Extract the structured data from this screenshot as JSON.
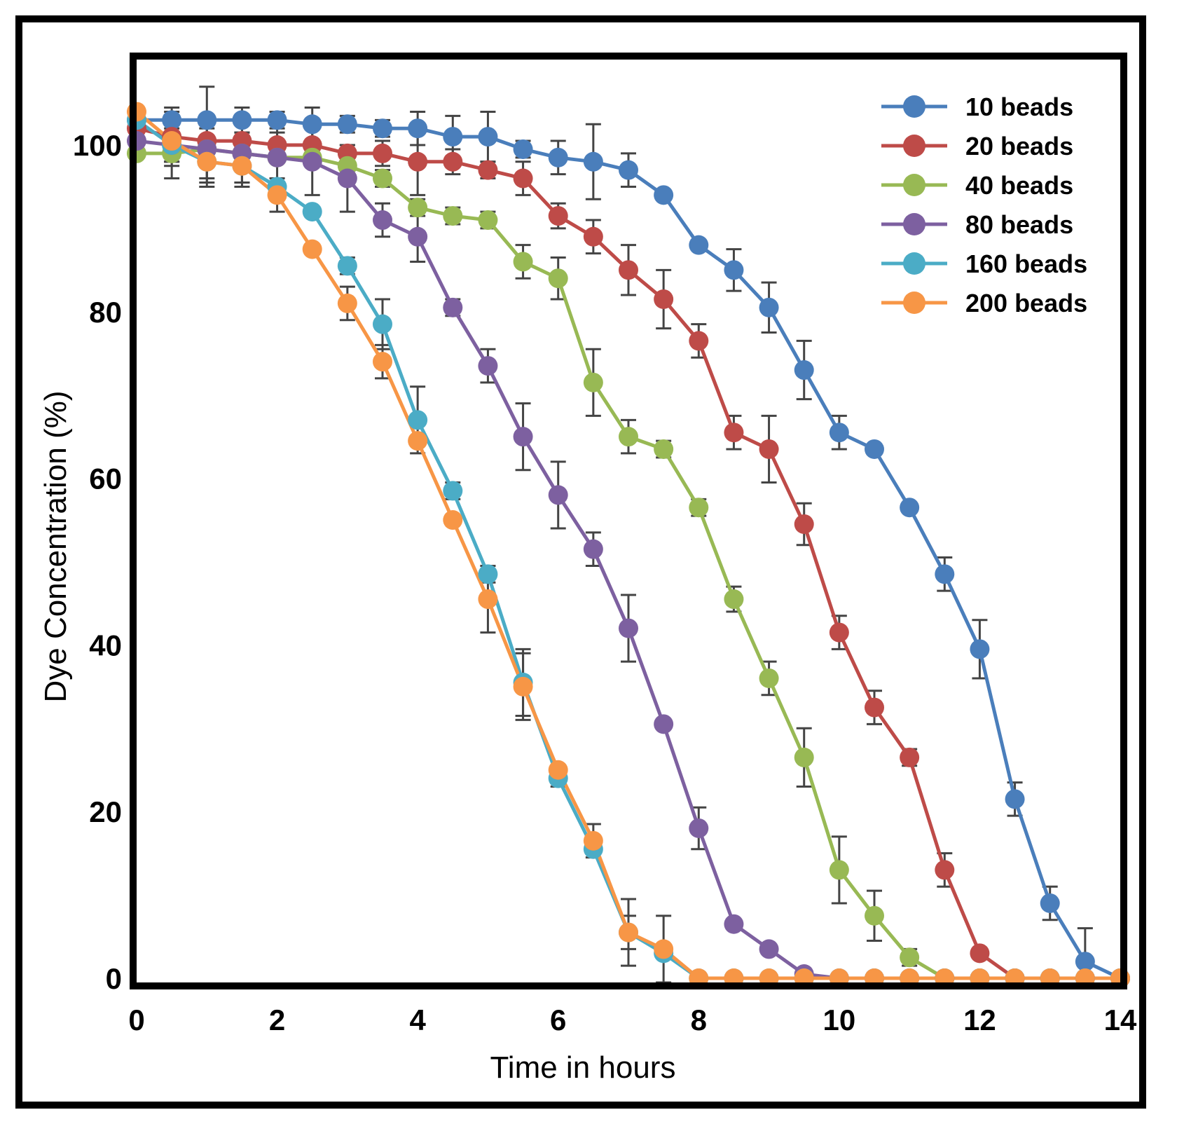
{
  "chart_data": {
    "type": "line",
    "title": "",
    "xlabel": "Time in hours",
    "ylabel": "Dye Concentration (%)",
    "xlim": [
      0,
      14
    ],
    "ylim": [
      0,
      110
    ],
    "x_ticks": [
      "0",
      "2",
      "4",
      "6",
      "8",
      "10",
      "12",
      "14"
    ],
    "y_ticks": [
      "0",
      "20",
      "40",
      "60",
      "80",
      "100"
    ],
    "y_tick_values": [
      0,
      20,
      40,
      60,
      80,
      100
    ],
    "legend_position": "top-right",
    "grid": false,
    "error_bar_color": "#444444",
    "series": [
      {
        "name": "10 beads",
        "color": "#4a7ebb",
        "points": [
          [
            0,
            103
          ],
          [
            0.5,
            103
          ],
          [
            1,
            103
          ],
          [
            1.5,
            103
          ],
          [
            2,
            103
          ],
          [
            2.5,
            102.5
          ],
          [
            3,
            102.5
          ],
          [
            3.5,
            102
          ],
          [
            4,
            102
          ],
          [
            4.5,
            101
          ],
          [
            5,
            101
          ],
          [
            5.5,
            99.5
          ],
          [
            6,
            98.5
          ],
          [
            6.5,
            98
          ],
          [
            7,
            97
          ],
          [
            7.5,
            94
          ],
          [
            8,
            88
          ],
          [
            8.5,
            85
          ],
          [
            9,
            80.5
          ],
          [
            9.5,
            73
          ],
          [
            10,
            65.5
          ],
          [
            10.5,
            63.5
          ],
          [
            11,
            56.5
          ],
          [
            11.5,
            48.5
          ],
          [
            12,
            39.5
          ],
          [
            12.5,
            21.5
          ],
          [
            13,
            9
          ],
          [
            13.5,
            2
          ],
          [
            14,
            0
          ]
        ],
        "errors": [
          0,
          1.5,
          4,
          1.5,
          1,
          2,
          1,
          1,
          2,
          2.5,
          3,
          1,
          2,
          4.5,
          2,
          0,
          0,
          2.5,
          3,
          3.5,
          2,
          0,
          0,
          2,
          3.5,
          2,
          2,
          4,
          0
        ]
      },
      {
        "name": "20 beads",
        "color": "#be4b48",
        "points": [
          [
            0,
            102
          ],
          [
            0.5,
            101
          ],
          [
            1,
            100.5
          ],
          [
            1.5,
            100.5
          ],
          [
            2,
            100
          ],
          [
            2.5,
            100
          ],
          [
            3,
            99
          ],
          [
            3.5,
            99
          ],
          [
            4,
            98
          ],
          [
            4.5,
            98
          ],
          [
            5,
            97
          ],
          [
            5.5,
            96
          ],
          [
            6,
            91.5
          ],
          [
            6.5,
            89
          ],
          [
            7,
            85
          ],
          [
            7.5,
            81.5
          ],
          [
            8,
            76.5
          ],
          [
            8.5,
            65.5
          ],
          [
            9,
            63.5
          ],
          [
            9.5,
            54.5
          ],
          [
            10,
            41.5
          ],
          [
            10.5,
            32.5
          ],
          [
            11,
            26.5
          ],
          [
            11.5,
            13
          ],
          [
            12,
            3
          ],
          [
            12.5,
            0
          ],
          [
            13,
            0
          ],
          [
            13.5,
            0
          ],
          [
            14,
            0
          ]
        ],
        "errors": [
          0,
          2,
          1.5,
          1,
          1.5,
          2,
          1,
          1.5,
          4,
          1.5,
          1,
          2,
          1.5,
          2,
          3,
          3.5,
          2,
          2,
          4,
          2.5,
          2,
          2,
          1,
          2,
          0,
          0,
          0,
          0,
          0
        ]
      },
      {
        "name": "40 beads",
        "color": "#98b954",
        "points": [
          [
            0,
            99
          ],
          [
            0.5,
            99
          ],
          [
            1,
            99.5
          ],
          [
            1.5,
            99
          ],
          [
            2,
            98.5
          ],
          [
            2.5,
            98.5
          ],
          [
            3,
            97.5
          ],
          [
            3.5,
            96
          ],
          [
            4,
            92.5
          ],
          [
            4.5,
            91.5
          ],
          [
            5,
            91
          ],
          [
            5.5,
            86
          ],
          [
            6,
            84
          ],
          [
            6.5,
            71.5
          ],
          [
            7,
            65
          ],
          [
            7.5,
            63.5
          ],
          [
            8,
            56.5
          ],
          [
            8.5,
            45.5
          ],
          [
            9,
            36
          ],
          [
            9.5,
            26.5
          ],
          [
            10,
            13
          ],
          [
            10.5,
            7.5
          ],
          [
            11,
            2.5
          ],
          [
            11.5,
            0
          ],
          [
            12,
            0
          ],
          [
            12.5,
            0
          ],
          [
            13,
            0
          ],
          [
            13.5,
            0
          ],
          [
            14,
            0
          ]
        ],
        "errors": [
          0,
          1,
          0,
          0,
          0,
          0,
          0,
          1,
          1,
          1,
          1,
          2,
          2.5,
          4,
          2,
          1,
          1,
          1.5,
          2,
          3.5,
          4,
          3,
          1,
          0,
          0,
          0,
          0,
          0,
          0
        ]
      },
      {
        "name": "80 beads",
        "color": "#7d60a0",
        "points": [
          [
            0,
            100.5
          ],
          [
            0.5,
            100
          ],
          [
            1,
            99.5
          ],
          [
            1.5,
            99
          ],
          [
            2,
            98.5
          ],
          [
            2.5,
            98
          ],
          [
            3,
            96
          ],
          [
            3.5,
            91
          ],
          [
            4,
            89
          ],
          [
            4.5,
            80.5
          ],
          [
            5,
            73.5
          ],
          [
            5.5,
            65
          ],
          [
            6,
            58
          ],
          [
            6.5,
            51.5
          ],
          [
            7,
            42
          ],
          [
            7.5,
            30.5
          ],
          [
            8,
            18
          ],
          [
            8.5,
            6.5
          ],
          [
            9,
            3.5
          ],
          [
            9.5,
            0.5
          ],
          [
            10,
            0
          ],
          [
            10.5,
            0
          ],
          [
            11,
            0
          ],
          [
            11.5,
            0
          ],
          [
            12,
            0
          ],
          [
            12.5,
            0
          ],
          [
            13,
            0
          ],
          [
            13.5,
            0
          ],
          [
            14,
            0
          ]
        ],
        "errors": [
          0,
          4,
          4,
          4,
          4,
          4,
          4,
          2,
          3,
          1,
          2,
          4,
          4,
          2,
          4,
          0,
          2.5,
          0,
          0,
          0,
          0,
          0,
          0,
          0,
          0,
          0,
          0,
          0,
          0
        ]
      },
      {
        "name": "160 beads",
        "color": "#4bacc6",
        "points": [
          [
            0,
            103
          ],
          [
            0.5,
            100
          ],
          [
            1,
            98
          ],
          [
            1.5,
            97.5
          ],
          [
            2,
            95
          ],
          [
            2.5,
            92
          ],
          [
            3,
            85.5
          ],
          [
            3.5,
            78.5
          ],
          [
            4,
            67
          ],
          [
            4.5,
            58.5
          ],
          [
            5,
            48.5
          ],
          [
            5.5,
            35.5
          ],
          [
            6,
            24
          ],
          [
            6.5,
            15.5
          ],
          [
            7,
            5.5
          ],
          [
            7.5,
            3
          ],
          [
            8,
            0
          ],
          [
            8.5,
            0
          ],
          [
            9,
            0
          ],
          [
            9.5,
            0
          ],
          [
            10,
            0
          ],
          [
            10.5,
            0
          ],
          [
            11,
            0
          ],
          [
            11.5,
            0
          ],
          [
            12,
            0
          ],
          [
            12.5,
            0
          ],
          [
            13,
            0
          ],
          [
            13.5,
            0
          ],
          [
            14,
            0
          ]
        ],
        "errors": [
          0,
          2,
          2,
          2,
          0,
          0,
          1,
          3,
          4,
          1,
          1,
          4,
          1,
          0,
          4,
          0,
          0,
          0,
          0,
          0,
          0,
          0,
          0,
          0,
          0,
          0,
          0,
          0,
          0
        ]
      },
      {
        "name": "200 beads",
        "color": "#f79646",
        "points": [
          [
            0,
            104
          ],
          [
            0.5,
            100.5
          ],
          [
            1,
            98
          ],
          [
            1.5,
            97.5
          ],
          [
            2,
            94
          ],
          [
            2.5,
            87.5
          ],
          [
            3,
            81
          ],
          [
            3.5,
            74
          ],
          [
            4,
            64.5
          ],
          [
            4.5,
            55
          ],
          [
            5,
            45.5
          ],
          [
            5.5,
            35
          ],
          [
            6,
            25
          ],
          [
            6.5,
            16.5
          ],
          [
            7,
            5.5
          ],
          [
            7.5,
            3.5
          ],
          [
            8,
            0
          ],
          [
            8.5,
            0
          ],
          [
            9,
            0
          ],
          [
            9.5,
            0
          ],
          [
            10,
            0
          ],
          [
            10.5,
            0
          ],
          [
            11,
            0
          ],
          [
            11.5,
            0
          ],
          [
            12,
            0
          ],
          [
            12.5,
            0
          ],
          [
            13,
            0
          ],
          [
            13.5,
            0
          ],
          [
            14,
            0
          ]
        ],
        "errors": [
          0,
          3,
          3,
          2,
          2,
          0,
          2,
          2,
          0,
          0,
          4,
          4,
          0,
          2,
          2,
          4,
          0,
          0,
          0,
          0,
          0,
          0,
          0,
          0,
          0,
          0,
          0,
          0,
          0
        ]
      }
    ]
  }
}
